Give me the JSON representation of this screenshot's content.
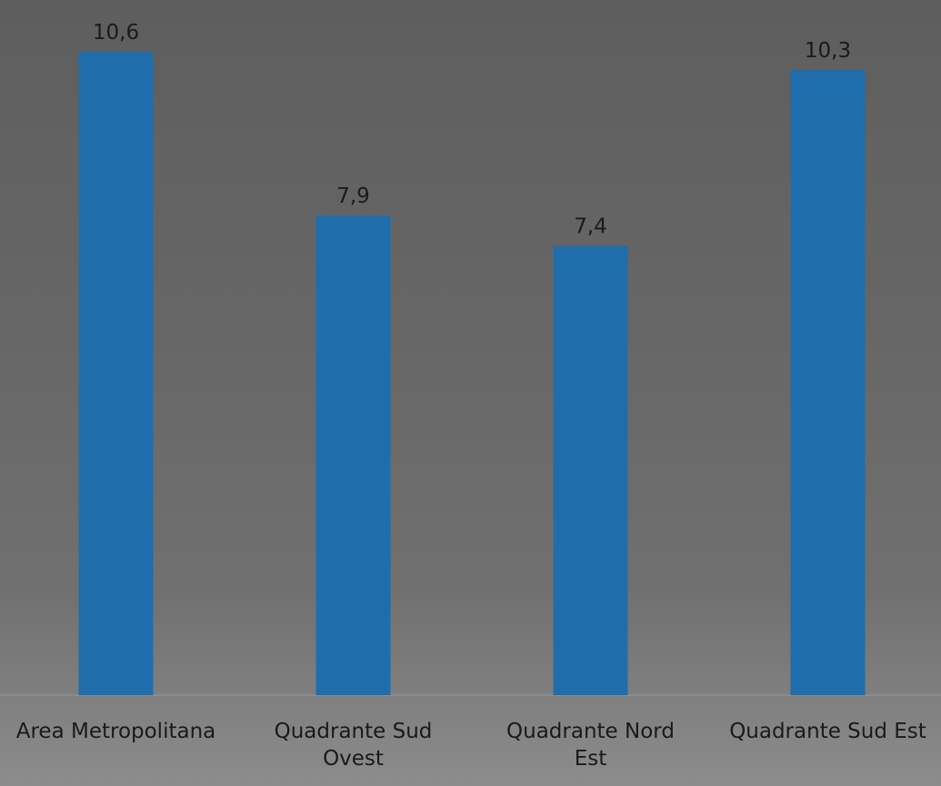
{
  "chart_data": {
    "type": "bar",
    "categories": [
      "Area Metropolitana",
      "Quadrante Sud Ovest",
      "Quadrante Nord Est",
      "Quadrante Sud Est"
    ],
    "values": [
      10.6,
      7.9,
      7.4,
      10.3
    ],
    "value_labels": [
      "10,6",
      "7,9",
      "7,4",
      "10,3"
    ],
    "color": "#1f6eab",
    "ylim": [
      0,
      11.45
    ]
  }
}
